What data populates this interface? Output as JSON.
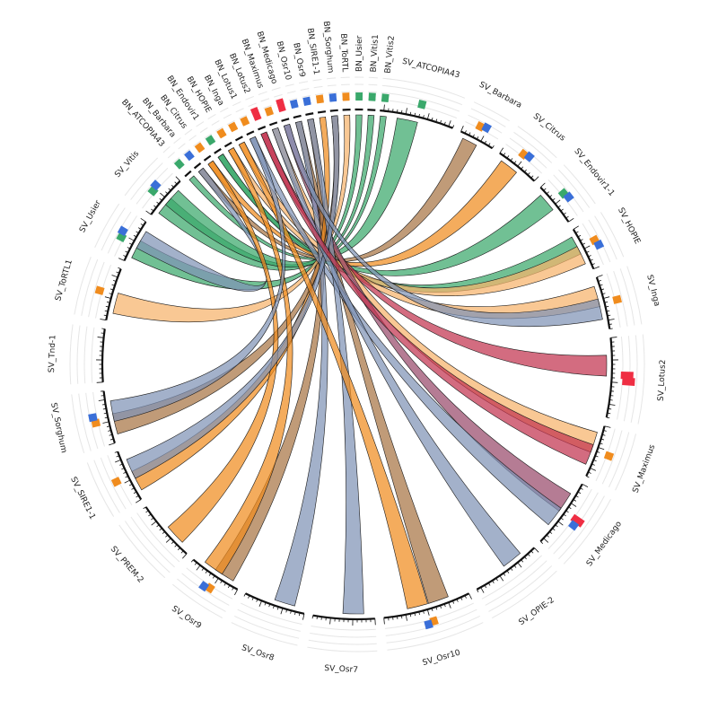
{
  "colors": {
    "green": "#3aa86b",
    "orange": "#f08c1e",
    "peach": "#f6b36b",
    "brown": "#a87544",
    "crimson": "#c2334f",
    "plum": "#984a6b",
    "steel": "#7f93b5",
    "blue": "#3a6fd8",
    "red": "#ef2e43"
  },
  "segments": [
    {
      "label": "SV_ATCOPIA43",
      "a0": 6,
      "a1": 22,
      "bars": [
        "green"
      ]
    },
    {
      "label": "SV_Barbara",
      "a0": 24,
      "a1": 32,
      "bars": [
        "orange",
        "blue"
      ]
    },
    {
      "label": "SV_Citrus",
      "a0": 34,
      "a1": 44,
      "bars": [
        "orange",
        "blue"
      ]
    },
    {
      "label": "SV_Endovir1-1",
      "a0": 46,
      "a1": 56,
      "bars": [
        "green",
        "blue"
      ]
    },
    {
      "label": "SV_HOPIE",
      "a0": 58,
      "a1": 68,
      "bars": [
        "orange",
        "blue"
      ]
    },
    {
      "label": "SV_Inga",
      "a0": 70,
      "a1": 82,
      "bars": [
        "orange"
      ]
    },
    {
      "label": "SV_Lotus2",
      "a0": 84,
      "a1": 102,
      "bars": [
        "red",
        "red"
      ]
    },
    {
      "label": "SV_Maximus",
      "a0": 104,
      "a1": 116,
      "bars": [
        "orange"
      ]
    },
    {
      "label": "SV_Medicago",
      "a0": 118,
      "a1": 134,
      "bars": [
        "red",
        "blue"
      ]
    },
    {
      "label": "SV_OPIE-2",
      "a0": 136,
      "a1": 152,
      "bars": []
    },
    {
      "label": "SV_Osr10",
      "a0": 154,
      "a1": 174,
      "bars": [
        "orange",
        "blue"
      ]
    },
    {
      "label": "SV_Osr7",
      "a0": 176,
      "a1": 190,
      "bars": []
    },
    {
      "label": "SV_Osr8",
      "a0": 192,
      "a1": 206,
      "bars": []
    },
    {
      "label": "SV_Osr9",
      "a0": 208,
      "a1": 220,
      "bars": [
        "orange",
        "blue"
      ]
    },
    {
      "label": "SV_PREM-2",
      "a0": 222,
      "a1": 236,
      "bars": []
    },
    {
      "label": "SV_SIRE1-1",
      "a0": 238,
      "a1": 250,
      "bars": [
        "orange"
      ]
    },
    {
      "label": "SV_Sorghum",
      "a0": 252,
      "a1": 264,
      "bars": [
        "orange",
        "blue"
      ]
    },
    {
      "label": "SV_Tnd-1",
      "a0": 266,
      "a1": 278,
      "bars": []
    },
    {
      "label": "SV_ToRTL1",
      "a0": 280,
      "a1": 292,
      "bars": [
        "orange"
      ]
    },
    {
      "label": "SV_Usier",
      "a0": 294,
      "a1": 304,
      "bars": [
        "green",
        "blue"
      ]
    },
    {
      "label": "SV_Vitis",
      "a0": 306,
      "a1": 316,
      "bars": [
        "green",
        "blue"
      ]
    },
    {
      "label": "BN_ATCOPIA43",
      "a0": 317.5,
      "a1": 319.3,
      "bars": [
        "green"
      ]
    },
    {
      "label": "BN_Barbara",
      "a0": 320.3,
      "a1": 322.1,
      "bars": [
        "blue"
      ]
    },
    {
      "label": "BN_Citrus",
      "a0": 323.1,
      "a1": 324.9,
      "bars": [
        "orange"
      ]
    },
    {
      "label": "BN_Endovir1",
      "a0": 325.9,
      "a1": 327.7,
      "bars": [
        "green"
      ]
    },
    {
      "label": "BN_HOPIE",
      "a0": 328.7,
      "a1": 330.5,
      "bars": [
        "orange"
      ]
    },
    {
      "label": "BN_Inga",
      "a0": 331.5,
      "a1": 333.3,
      "bars": [
        "orange"
      ]
    },
    {
      "label": "BN_Lotus1",
      "a0": 334.3,
      "a1": 336.1,
      "bars": [
        "orange"
      ]
    },
    {
      "label": "BN_Lotus2",
      "a0": 337.1,
      "a1": 338.9,
      "bars": [
        "red"
      ]
    },
    {
      "label": "BN_Maximus",
      "a0": 339.9,
      "a1": 341.7,
      "bars": [
        "orange"
      ]
    },
    {
      "label": "BN_Medicago",
      "a0": 342.7,
      "a1": 344.5,
      "bars": [
        "red"
      ]
    },
    {
      "label": "BN_Osr10",
      "a0": 345.5,
      "a1": 347.3,
      "bars": [
        "blue"
      ]
    },
    {
      "label": "BN_Osr9",
      "a0": 348.3,
      "a1": 350.1,
      "bars": [
        "blue"
      ]
    },
    {
      "label": "BN_SIRE1-1",
      "a0": 351.1,
      "a1": 352.9,
      "bars": [
        "orange"
      ]
    },
    {
      "label": "BN_Sorghum",
      "a0": 353.9,
      "a1": 355.7,
      "bars": [
        "blue"
      ]
    },
    {
      "label": "BN_ToRTL",
      "a0": 356.7,
      "a1": 358.5,
      "bars": [
        "orange"
      ]
    },
    {
      "label": "BN_Usier",
      "a0": 359.5,
      "a1": 361.3,
      "bars": [
        "green"
      ]
    },
    {
      "label": "BN_Vitis1",
      "a0": 362.3,
      "a1": 364.1,
      "bars": [
        "green"
      ]
    },
    {
      "label": "BN_Vitis2",
      "a0": 365.1,
      "a1": 366.9,
      "bars": [
        "green"
      ]
    }
  ],
  "links": [
    {
      "from": "BN_ATCOPIA43",
      "to": "SV_ATCOPIA43",
      "color": "green"
    },
    {
      "from": "BN_Vitis1",
      "to": "SV_Vitis",
      "color": "green"
    },
    {
      "from": "BN_Vitis2",
      "to": "SV_Vitis",
      "color": "green"
    },
    {
      "from": "BN_Usier",
      "to": "SV_Usier",
      "color": "green"
    },
    {
      "from": "BN_Endovir1",
      "to": "SV_Endovir1-1",
      "color": "green"
    },
    {
      "from": "BN_Endovir1",
      "to": "SV_HOPIE",
      "color": "green"
    },
    {
      "from": "BN_Barbara",
      "to": "SV_Barbara",
      "color": "brown"
    },
    {
      "from": "BN_Citrus",
      "to": "SV_Citrus",
      "color": "orange"
    },
    {
      "from": "BN_HOPIE",
      "to": "SV_HOPIE",
      "color": "peach"
    },
    {
      "from": "BN_Inga",
      "to": "SV_Inga",
      "color": "peach"
    },
    {
      "from": "BN_Lotus2",
      "to": "SV_Lotus2",
      "color": "crimson"
    },
    {
      "from": "BN_Maximus",
      "to": "SV_Maximus",
      "color": "peach"
    },
    {
      "from": "BN_Medicago",
      "to": "SV_Medicago",
      "color": "plum"
    },
    {
      "from": "BN_Osr10",
      "to": "SV_Osr10",
      "color": "brown"
    },
    {
      "from": "BN_Osr9",
      "to": "SV_Osr9",
      "color": "brown"
    },
    {
      "from": "BN_SIRE1-1",
      "to": "SV_SIRE1-1",
      "color": "orange"
    },
    {
      "from": "BN_Sorghum",
      "to": "SV_Sorghum",
      "color": "brown"
    },
    {
      "from": "BN_ToRTL",
      "to": "SV_ToRTL1",
      "color": "peach"
    },
    {
      "from": "BN_Lotus1",
      "to": "SV_Medicago",
      "color": "steel"
    },
    {
      "from": "BN_Osr10",
      "to": "SV_Osr8",
      "color": "steel"
    },
    {
      "from": "BN_Osr9",
      "to": "SV_Osr7",
      "color": "steel"
    },
    {
      "from": "BN_Barbara",
      "to": "SV_Usier",
      "color": "steel"
    },
    {
      "from": "BN_Citrus",
      "to": "SV_PREM-2",
      "color": "orange"
    },
    {
      "from": "BN_Sorghum",
      "to": "SV_SIRE1-1",
      "color": "steel"
    },
    {
      "from": "BN_Maximus",
      "to": "SV_OPIE-2",
      "color": "steel"
    },
    {
      "from": "BN_Inga",
      "to": "SV_Osr10",
      "color": "orange"
    },
    {
      "from": "BN_HOPIE",
      "to": "SV_Osr9",
      "color": "orange"
    },
    {
      "from": "BN_Lotus1",
      "to": "SV_Sorghum",
      "color": "steel"
    },
    {
      "from": "BN_Medicago",
      "to": "SV_Inga",
      "color": "steel"
    },
    {
      "from": "BN_Lotus2",
      "to": "SV_Maximus",
      "color": "crimson"
    }
  ]
}
